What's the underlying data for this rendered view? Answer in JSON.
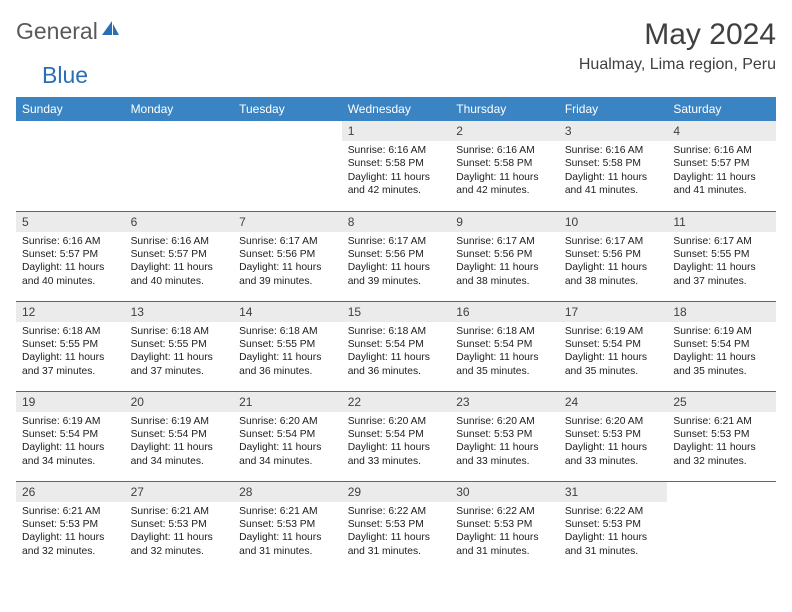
{
  "logo": {
    "textA": "General",
    "textB": "Blue"
  },
  "title": "May 2024",
  "location": "Hualmay, Lima region, Peru",
  "colors": {
    "header_bg": "#3b84c4",
    "header_text": "#ffffff",
    "daynum_bg": "#ebebeb",
    "border": "#3b6fa0",
    "logo_gray": "#5a5a5a",
    "logo_blue": "#2a6fb5",
    "text": "#404040"
  },
  "dayHeaders": [
    "Sunday",
    "Monday",
    "Tuesday",
    "Wednesday",
    "Thursday",
    "Friday",
    "Saturday"
  ],
  "weeks": [
    [
      {
        "n": "",
        "sr": "",
        "ss": "",
        "dl": ""
      },
      {
        "n": "",
        "sr": "",
        "ss": "",
        "dl": ""
      },
      {
        "n": "",
        "sr": "",
        "ss": "",
        "dl": ""
      },
      {
        "n": "1",
        "sr": "6:16 AM",
        "ss": "5:58 PM",
        "dl": "11 hours and 42 minutes."
      },
      {
        "n": "2",
        "sr": "6:16 AM",
        "ss": "5:58 PM",
        "dl": "11 hours and 42 minutes."
      },
      {
        "n": "3",
        "sr": "6:16 AM",
        "ss": "5:58 PM",
        "dl": "11 hours and 41 minutes."
      },
      {
        "n": "4",
        "sr": "6:16 AM",
        "ss": "5:57 PM",
        "dl": "11 hours and 41 minutes."
      }
    ],
    [
      {
        "n": "5",
        "sr": "6:16 AM",
        "ss": "5:57 PM",
        "dl": "11 hours and 40 minutes."
      },
      {
        "n": "6",
        "sr": "6:16 AM",
        "ss": "5:57 PM",
        "dl": "11 hours and 40 minutes."
      },
      {
        "n": "7",
        "sr": "6:17 AM",
        "ss": "5:56 PM",
        "dl": "11 hours and 39 minutes."
      },
      {
        "n": "8",
        "sr": "6:17 AM",
        "ss": "5:56 PM",
        "dl": "11 hours and 39 minutes."
      },
      {
        "n": "9",
        "sr": "6:17 AM",
        "ss": "5:56 PM",
        "dl": "11 hours and 38 minutes."
      },
      {
        "n": "10",
        "sr": "6:17 AM",
        "ss": "5:56 PM",
        "dl": "11 hours and 38 minutes."
      },
      {
        "n": "11",
        "sr": "6:17 AM",
        "ss": "5:55 PM",
        "dl": "11 hours and 37 minutes."
      }
    ],
    [
      {
        "n": "12",
        "sr": "6:18 AM",
        "ss": "5:55 PM",
        "dl": "11 hours and 37 minutes."
      },
      {
        "n": "13",
        "sr": "6:18 AM",
        "ss": "5:55 PM",
        "dl": "11 hours and 37 minutes."
      },
      {
        "n": "14",
        "sr": "6:18 AM",
        "ss": "5:55 PM",
        "dl": "11 hours and 36 minutes."
      },
      {
        "n": "15",
        "sr": "6:18 AM",
        "ss": "5:54 PM",
        "dl": "11 hours and 36 minutes."
      },
      {
        "n": "16",
        "sr": "6:18 AM",
        "ss": "5:54 PM",
        "dl": "11 hours and 35 minutes."
      },
      {
        "n": "17",
        "sr": "6:19 AM",
        "ss": "5:54 PM",
        "dl": "11 hours and 35 minutes."
      },
      {
        "n": "18",
        "sr": "6:19 AM",
        "ss": "5:54 PM",
        "dl": "11 hours and 35 minutes."
      }
    ],
    [
      {
        "n": "19",
        "sr": "6:19 AM",
        "ss": "5:54 PM",
        "dl": "11 hours and 34 minutes."
      },
      {
        "n": "20",
        "sr": "6:19 AM",
        "ss": "5:54 PM",
        "dl": "11 hours and 34 minutes."
      },
      {
        "n": "21",
        "sr": "6:20 AM",
        "ss": "5:54 PM",
        "dl": "11 hours and 34 minutes."
      },
      {
        "n": "22",
        "sr": "6:20 AM",
        "ss": "5:54 PM",
        "dl": "11 hours and 33 minutes."
      },
      {
        "n": "23",
        "sr": "6:20 AM",
        "ss": "5:53 PM",
        "dl": "11 hours and 33 minutes."
      },
      {
        "n": "24",
        "sr": "6:20 AM",
        "ss": "5:53 PM",
        "dl": "11 hours and 33 minutes."
      },
      {
        "n": "25",
        "sr": "6:21 AM",
        "ss": "5:53 PM",
        "dl": "11 hours and 32 minutes."
      }
    ],
    [
      {
        "n": "26",
        "sr": "6:21 AM",
        "ss": "5:53 PM",
        "dl": "11 hours and 32 minutes."
      },
      {
        "n": "27",
        "sr": "6:21 AM",
        "ss": "5:53 PM",
        "dl": "11 hours and 32 minutes."
      },
      {
        "n": "28",
        "sr": "6:21 AM",
        "ss": "5:53 PM",
        "dl": "11 hours and 31 minutes."
      },
      {
        "n": "29",
        "sr": "6:22 AM",
        "ss": "5:53 PM",
        "dl": "11 hours and 31 minutes."
      },
      {
        "n": "30",
        "sr": "6:22 AM",
        "ss": "5:53 PM",
        "dl": "11 hours and 31 minutes."
      },
      {
        "n": "31",
        "sr": "6:22 AM",
        "ss": "5:53 PM",
        "dl": "11 hours and 31 minutes."
      },
      {
        "n": "",
        "sr": "",
        "ss": "",
        "dl": ""
      }
    ]
  ],
  "labels": {
    "sunrise": "Sunrise:",
    "sunset": "Sunset:",
    "daylight": "Daylight:"
  }
}
